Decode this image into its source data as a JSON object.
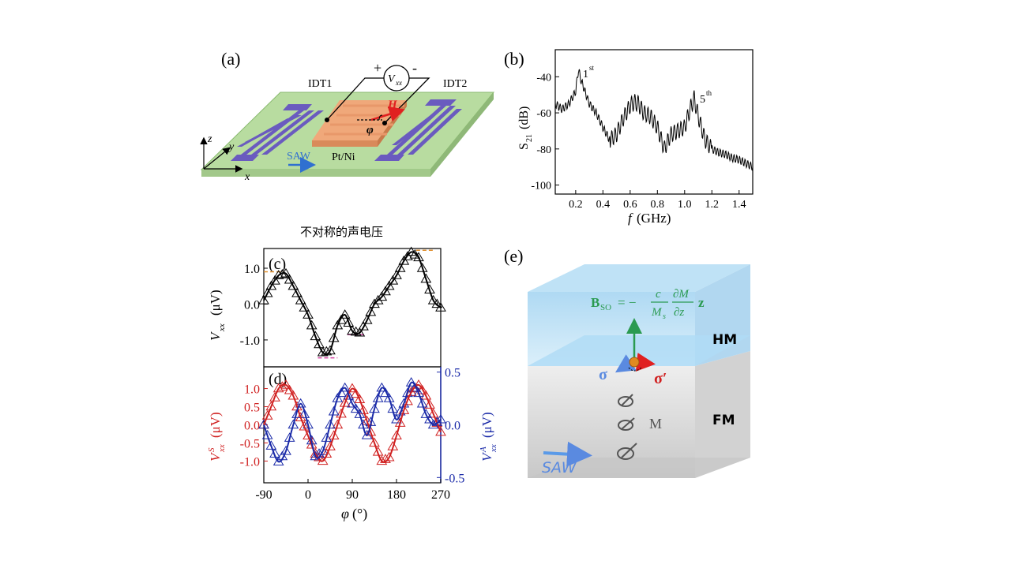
{
  "caption": "不对称的声电压",
  "panel_a": {
    "label": "(a)",
    "idt1": "IDT1",
    "idt2": "IDT2",
    "plus": "+",
    "minus": "-",
    "volt_main": "V",
    "volt_sub": "xx",
    "field": "H",
    "angle": "φ",
    "saw": "SAW",
    "film": "Pt/Ni",
    "axis_z": "z",
    "axis_y": "y",
    "axis_x": "x",
    "colors": {
      "substrate": "#b8dca0",
      "idt": "#6a5bbf",
      "film": "#f0a87a",
      "field": "#e02020",
      "saw": "#3070d0"
    }
  },
  "panel_b": {
    "label": "(b)",
    "ylabel_main": "S",
    "ylabel_sub": "21",
    "ylabel_unit": "(dB)",
    "xlabel_main": "f",
    "xlabel_unit": "(GHz)",
    "peak1_main": "1",
    "peak1_sup": "st",
    "peak5_main": "5",
    "peak5_sup": "th"
  },
  "panel_c": {
    "label": "(c)",
    "ylabel_main": "V",
    "ylabel_sub": "xx",
    "ylabel_unit": "(μV)"
  },
  "panel_d": {
    "label": "(d)",
    "ylabel_left_main": "V",
    "ylabel_left_sup": "S",
    "ylabel_left_sub": "xx",
    "ylabel_left_unit": "(μV)",
    "ylabel_right_main": "V",
    "ylabel_right_sup": "A",
    "ylabel_right_sub": "xx",
    "ylabel_right_unit": "(μV)",
    "xlabel_main": "φ",
    "xlabel_unit": "(°)"
  },
  "panel_e": {
    "label": "(e)",
    "equation": "B_SO = −(c/M_s)(∂M/∂z) z",
    "eq_B": "B",
    "eq_sub": "SO",
    "eq_eq": "= −",
    "eq_c": "c",
    "eq_Ms": "M",
    "eq_Ms_sub": "s",
    "eq_dM": "∂M",
    "eq_dz": "∂z",
    "eq_z": "z",
    "hm": "HM",
    "fm": "FM",
    "sigma": "σ",
    "sigma_prime": "σ′",
    "m": "M",
    "saw": "SAW",
    "colors": {
      "hm": "#b8dcf4",
      "fm": "#d8d8d8",
      "eq": "#2a9a50",
      "sigma": "#5a8ae0",
      "sigma_prime": "#d02020"
    }
  },
  "chart_data": [
    {
      "type": "line",
      "title": "(b)",
      "xlabel": "f (GHz)",
      "ylabel": "S21 (dB)",
      "xlim": [
        0.05,
        1.5
      ],
      "ylim": [
        -105,
        -25
      ],
      "xticks": [
        0.2,
        0.4,
        0.6,
        0.8,
        1.0,
        1.2,
        1.4
      ],
      "xtick_labels": [
        "0.2",
        "0.4",
        "0.6",
        "0.8",
        "1.0",
        "1.2",
        "1.4"
      ],
      "yticks": [
        -100,
        -80,
        -60,
        -40
      ],
      "ytick_labels": [
        "-100",
        "-80",
        "-60",
        "-40"
      ],
      "x": [
        0.05,
        0.1,
        0.15,
        0.2,
        0.22,
        0.24,
        0.3,
        0.35,
        0.4,
        0.45,
        0.5,
        0.55,
        0.6,
        0.63,
        0.66,
        0.7,
        0.75,
        0.8,
        0.85,
        0.9,
        0.95,
        1.0,
        1.04,
        1.07,
        1.1,
        1.15,
        1.2,
        1.25,
        1.3,
        1.35,
        1.4,
        1.45,
        1.5
      ],
      "y": [
        -55,
        -58,
        -55,
        -48,
        -36,
        -42,
        -55,
        -60,
        -68,
        -75,
        -72,
        -63,
        -56,
        -54,
        -55,
        -60,
        -62,
        -68,
        -80,
        -72,
        -70,
        -68,
        -58,
        -52,
        -62,
        -75,
        -80,
        -82,
        -83,
        -85,
        -86,
        -88,
        -90
      ],
      "annotations": [
        "1st",
        "5th"
      ]
    },
    {
      "type": "scatter",
      "title": "(c)",
      "xlabel": "φ (°)",
      "ylabel": "V_xx (μV)",
      "xlim": [
        -90,
        270
      ],
      "ylim": [
        -1.75,
        1.55
      ],
      "yticks": [
        -1.0,
        0.0,
        1.0
      ],
      "ytick_labels": [
        "-1.0",
        "0.0",
        "1.0"
      ],
      "series": [
        {
          "name": "V_xx data",
          "marker": "triangle-open",
          "color": "#000000",
          "x": [
            -90,
            -75,
            -60,
            -45,
            -30,
            -15,
            0,
            15,
            30,
            45,
            60,
            75,
            90,
            105,
            120,
            135,
            150,
            165,
            180,
            195,
            210,
            225,
            240,
            255,
            270
          ],
          "y": [
            0.1,
            0.5,
            0.8,
            0.85,
            0.5,
            0.1,
            -0.3,
            -0.9,
            -1.35,
            -1.3,
            -0.6,
            -0.3,
            -0.75,
            -0.8,
            -0.45,
            0.0,
            0.2,
            0.5,
            0.8,
            1.2,
            1.45,
            1.3,
            0.7,
            0.1,
            -0.1
          ]
        },
        {
          "name": "V_xx fit",
          "marker": "line",
          "color": "#000000"
        }
      ],
      "reference_lines": [
        {
          "y": 0.9,
          "color": "#e09030",
          "x": [
            -90,
            -50
          ]
        },
        {
          "y": 1.5,
          "color": "#e09030",
          "x": [
            220,
            258
          ]
        },
        {
          "y": -1.5,
          "color": "#d040a0",
          "x": [
            20,
            60
          ]
        },
        {
          "y": -0.85,
          "color": "#d040a0",
          "x": [
            80,
            115
          ]
        }
      ]
    },
    {
      "type": "scatter",
      "title": "(d)",
      "xlabel": "φ (°)",
      "ylabel": "V^S_xx (μV)",
      "ylabel_right": "V^A_xx (μV)",
      "xlim": [
        -90,
        270
      ],
      "ylim": [
        -1.6,
        1.6
      ],
      "ylim_right": [
        -0.55,
        0.55
      ],
      "xticks": [
        -90,
        0,
        90,
        180,
        270
      ],
      "xtick_labels": [
        "-90",
        "0",
        "90",
        "180",
        "270"
      ],
      "yticks": [
        -1.0,
        -0.5,
        0.0,
        0.5,
        1.0
      ],
      "ytick_labels": [
        "-1.0",
        "-0.5",
        "0.0",
        "0.5",
        "1.0"
      ],
      "yticks_right": [
        -0.5,
        0.0,
        0.5
      ],
      "ytick_labels_right": [
        "-0.5",
        "0.0",
        "0.5"
      ],
      "series": [
        {
          "name": "V^S_xx",
          "axis": "left",
          "color": "#d02020",
          "marker": "triangle-open",
          "x": [
            -90,
            -75,
            -60,
            -45,
            -30,
            -15,
            0,
            15,
            30,
            45,
            60,
            75,
            90,
            105,
            120,
            135,
            150,
            165,
            180,
            195,
            210,
            225,
            240,
            255,
            270
          ],
          "y": [
            0.0,
            0.5,
            1.0,
            1.1,
            0.8,
            0.2,
            -0.3,
            -0.8,
            -1.0,
            -0.6,
            0.0,
            0.6,
            1.0,
            0.7,
            0.1,
            -0.5,
            -1.0,
            -0.9,
            -0.3,
            0.4,
            0.9,
            1.1,
            0.8,
            0.3,
            -0.2
          ]
        },
        {
          "name": "V^A_xx",
          "axis": "right",
          "color": "#1a2aa8",
          "marker": "triangle-open",
          "x": [
            -90,
            -75,
            -60,
            -45,
            -30,
            -15,
            0,
            15,
            30,
            45,
            60,
            75,
            90,
            105,
            120,
            135,
            150,
            165,
            180,
            195,
            210,
            225,
            240,
            255,
            270
          ],
          "y": [
            0.0,
            -0.2,
            -0.35,
            -0.25,
            0.0,
            0.2,
            0.0,
            -0.3,
            -0.25,
            0.0,
            0.25,
            0.35,
            0.2,
            0.1,
            -0.1,
            0.15,
            0.35,
            0.25,
            0.05,
            0.2,
            0.4,
            0.3,
            0.1,
            0.0,
            0.05
          ]
        }
      ]
    }
  ]
}
